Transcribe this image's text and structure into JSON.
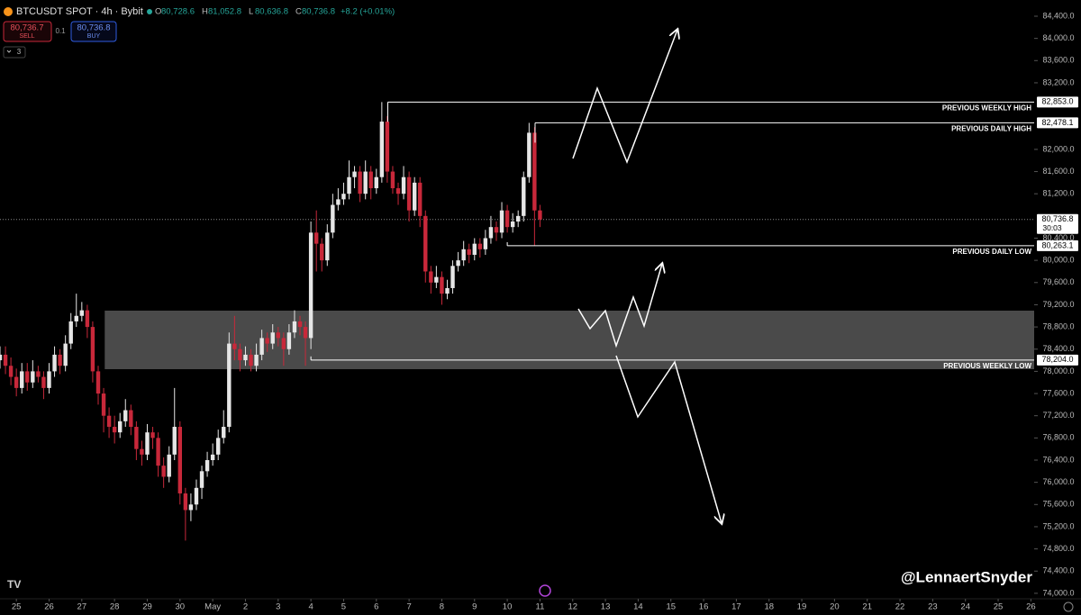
{
  "chart_data": {
    "type": "candlestick",
    "title": "BTCUSDT SPOT · 4h · Bybit",
    "ohlc": [
      {
        "key": "O",
        "value": "80,728.6"
      },
      {
        "key": "H",
        "value": "81,052.8"
      },
      {
        "key": "L",
        "value": "80,636.8"
      },
      {
        "key": "C",
        "value": "80,736.8"
      }
    ],
    "change": "+8.2 (+0.01%)",
    "trade": {
      "sell_price": "80,736.7",
      "sell": "SELL",
      "qty": "0.1",
      "buy_price": "80,736.8",
      "buy": "BUY",
      "indicators": "3"
    },
    "watermark": "@LennaertSnyder",
    "up_color": "#e6e6e6",
    "down_color": "#c8283a",
    "x": [
      -0.5,
      -0.333,
      -0.167,
      0,
      0.167,
      0.333,
      0.5,
      0.667,
      0.833,
      1,
      1.167,
      1.333,
      1.5,
      1.667,
      1.833,
      2,
      2.167,
      2.333,
      2.5,
      2.667,
      2.833,
      3,
      3.167,
      3.333,
      3.5,
      3.667,
      3.833,
      4,
      4.167,
      4.333,
      4.5,
      4.667,
      4.833,
      5,
      5.167,
      5.333,
      5.5,
      5.667,
      5.833,
      6,
      6.167,
      6.333,
      6.5,
      6.667,
      6.833,
      7,
      7.167,
      7.333,
      7.5,
      7.667,
      7.833,
      8,
      8.167,
      8.333,
      8.5,
      8.667,
      8.833,
      9,
      9.167,
      9.333,
      9.5,
      9.667,
      9.833,
      10,
      10.167,
      10.333,
      10.5,
      10.667,
      10.833,
      11,
      11.167,
      11.333,
      11.5,
      11.667,
      11.833,
      12,
      12.167,
      12.333,
      12.5,
      12.667,
      12.833,
      13,
      13.167,
      13.333,
      13.5,
      13.667,
      13.833,
      14,
      14.167,
      14.333,
      14.5,
      14.667,
      14.833,
      15,
      15.167,
      15.333,
      15.5,
      15.667,
      15.833,
      16
    ],
    "open": [
      78200,
      78300,
      78100,
      77900,
      77700,
      78000,
      77800,
      78000,
      77900,
      77700,
      78000,
      78300,
      78100,
      78500,
      78900,
      79000,
      79100,
      78800,
      78000,
      77600,
      77200,
      77000,
      76900,
      77100,
      77300,
      77000,
      76600,
      76500,
      76900,
      76800,
      76300,
      76100,
      76500,
      77000,
      75800,
      75500,
      75600,
      75900,
      76200,
      76400,
      76500,
      76800,
      77000,
      78500,
      78400,
      78200,
      78300,
      78100,
      78300,
      78600,
      78500,
      78700,
      78600,
      78400,
      78700,
      78900,
      78800,
      78600,
      80500,
      80300,
      80000,
      80500,
      81000,
      81100,
      81200,
      81500,
      81600,
      81200,
      81600,
      81300,
      81500,
      82500,
      81600,
      81300,
      81200,
      81500,
      80900,
      81400,
      80800,
      79800,
      79600,
      79700,
      79400,
      79500,
      79900,
      80000,
      80200,
      80100,
      80300,
      80200,
      80400,
      80600,
      80500,
      80900,
      80600,
      80700,
      80800,
      81500,
      82300,
      80900
    ],
    "high": [
      78450,
      78450,
      78250,
      78050,
      78150,
      78150,
      78200,
      78100,
      78000,
      78150,
      78450,
      78400,
      78650,
      79050,
      79400,
      79250,
      79200,
      78900,
      78100,
      77700,
      77350,
      77200,
      77250,
      77500,
      77400,
      77100,
      76750,
      77050,
      77000,
      76900,
      76450,
      76650,
      77700,
      77100,
      75900,
      75800,
      76050,
      76300,
      76550,
      76700,
      76950,
      77300,
      78700,
      79000,
      78500,
      78450,
      78400,
      78500,
      78750,
      78700,
      78850,
      78800,
      78700,
      78850,
      79100,
      79000,
      78900,
      80700,
      80900,
      80400,
      80650,
      81200,
      81300,
      81400,
      81800,
      81700,
      81700,
      81800,
      81700,
      81650,
      82853,
      82600,
      81700,
      81400,
      81700,
      81600,
      81500,
      81500,
      80900,
      79900,
      79900,
      79800,
      79650,
      80000,
      80150,
      80350,
      80300,
      80400,
      80400,
      80550,
      80800,
      80700,
      81050,
      81000,
      80850,
      80900,
      81600,
      82478,
      82400,
      81000
    ],
    "low": [
      78050,
      77950,
      77750,
      77550,
      77600,
      77650,
      77700,
      77800,
      77500,
      77600,
      77900,
      77950,
      78000,
      78400,
      78800,
      78900,
      78600,
      77800,
      77400,
      76900,
      76800,
      76700,
      76800,
      77000,
      76850,
      76400,
      76300,
      76400,
      76600,
      76100,
      75900,
      76000,
      76400,
      75600,
      74950,
      75300,
      75500,
      75700,
      76100,
      76300,
      76400,
      76700,
      76900,
      78200,
      78000,
      78100,
      78000,
      78000,
      78200,
      78350,
      78400,
      78450,
      78100,
      78300,
      78600,
      78650,
      78100,
      78400,
      79800,
      79800,
      79900,
      80400,
      80900,
      81000,
      81100,
      81300,
      81050,
      81100,
      81100,
      81200,
      81400,
      81400,
      81200,
      81000,
      81100,
      80700,
      80800,
      80600,
      79600,
      79400,
      79500,
      79200,
      79300,
      79400,
      79800,
      79900,
      79950,
      80000,
      80050,
      80100,
      80300,
      80350,
      80400,
      80500,
      80500,
      80600,
      80700,
      81400,
      80263.1,
      80600
    ],
    "close": [
      78300,
      78100,
      77900,
      77700,
      78000,
      77800,
      78000,
      77900,
      77700,
      78000,
      78300,
      78100,
      78500,
      78900,
      79000,
      79100,
      78800,
      78000,
      77600,
      77200,
      77000,
      76900,
      77100,
      77300,
      77000,
      76600,
      76500,
      76900,
      76800,
      76300,
      76100,
      76500,
      77000,
      75800,
      75500,
      75600,
      75900,
      76200,
      76400,
      76500,
      76800,
      77000,
      78500,
      78400,
      78200,
      78300,
      78100,
      78300,
      78600,
      78500,
      78700,
      78600,
      78400,
      78700,
      78900,
      78800,
      78600,
      80500,
      80300,
      80000,
      80500,
      81000,
      81100,
      81200,
      81500,
      81600,
      81200,
      81600,
      81300,
      81500,
      82500,
      81600,
      81300,
      81200,
      81500,
      80900,
      81400,
      80800,
      79800,
      79600,
      79700,
      79400,
      79500,
      79900,
      80000,
      80200,
      80100,
      80300,
      80200,
      80400,
      80600,
      80500,
      80900,
      80600,
      80700,
      80800,
      81500,
      82300,
      80900,
      80736.8
    ],
    "xlim": [
      -0.5,
      31.1
    ],
    "ylim": [
      73901,
      84692
    ],
    "xticks": [
      {
        "value": 0,
        "label": "25"
      },
      {
        "value": 1,
        "label": "26"
      },
      {
        "value": 2,
        "label": "27"
      },
      {
        "value": 3,
        "label": "28"
      },
      {
        "value": 4,
        "label": "29"
      },
      {
        "value": 5,
        "label": "30"
      },
      {
        "value": 6,
        "label": "May"
      },
      {
        "value": 7,
        "label": "2"
      },
      {
        "value": 8,
        "label": "3"
      },
      {
        "value": 9,
        "label": "4"
      },
      {
        "value": 10,
        "label": "5"
      },
      {
        "value": 11,
        "label": "6"
      },
      {
        "value": 12,
        "label": "7"
      },
      {
        "value": 13,
        "label": "8"
      },
      {
        "value": 14,
        "label": "9"
      },
      {
        "value": 15,
        "label": "10"
      },
      {
        "value": 16,
        "label": "11"
      },
      {
        "value": 17,
        "label": "12"
      },
      {
        "value": 18,
        "label": "13"
      },
      {
        "value": 19,
        "label": "14"
      },
      {
        "value": 20,
        "label": "15"
      },
      {
        "value": 21,
        "label": "16"
      },
      {
        "value": 22,
        "label": "17"
      },
      {
        "value": 23,
        "label": "18"
      },
      {
        "value": 24,
        "label": "19"
      },
      {
        "value": 25,
        "label": "20"
      },
      {
        "value": 26,
        "label": "21"
      },
      {
        "value": 27,
        "label": "22"
      },
      {
        "value": 28,
        "label": "23"
      },
      {
        "value": 29,
        "label": "24"
      },
      {
        "value": 30,
        "label": "25"
      },
      {
        "value": 31,
        "label": "26"
      }
    ],
    "yticks": [
      {
        "value": 74000,
        "label": "74,000.0"
      },
      {
        "value": 74400,
        "label": "74,400.0"
      },
      {
        "value": 74800,
        "label": "74,800.0"
      },
      {
        "value": 75200,
        "label": "75,200.0"
      },
      {
        "value": 75600,
        "label": "75,600.0"
      },
      {
        "value": 76000,
        "label": "76,000.0"
      },
      {
        "value": 76400,
        "label": "76,400.0"
      },
      {
        "value": 76800,
        "label": "76,800.0"
      },
      {
        "value": 77200,
        "label": "77,200.0"
      },
      {
        "value": 77600,
        "label": "77,600.0"
      },
      {
        "value": 78000,
        "label": "78,000.0"
      },
      {
        "value": 78400,
        "label": "78,400.0"
      },
      {
        "value": 78800,
        "label": "78,800.0"
      },
      {
        "value": 79200,
        "label": "79,200.0"
      },
      {
        "value": 79600,
        "label": "79,600.0"
      },
      {
        "value": 80000,
        "label": "80,000.0"
      },
      {
        "value": 80400,
        "label": "80,400.0"
      },
      {
        "value": 81200,
        "label": "81,200.0"
      },
      {
        "value": 81600,
        "label": "81,600.0"
      },
      {
        "value": 82000,
        "label": "82,000.0"
      },
      {
        "value": 83200,
        "label": "83,200.0"
      },
      {
        "value": 83600,
        "label": "83,600.0"
      },
      {
        "value": 84000,
        "label": "84,000.0"
      },
      {
        "value": 84400,
        "label": "84,400.0"
      }
    ],
    "zone": {
      "low": 78039,
      "high": 79094,
      "from": 2.7
    },
    "levels": [
      {
        "value": 82853,
        "label": "82,853.0",
        "text": "PREVIOUS WEEKLY HIGH",
        "from": 11.35
      },
      {
        "value": 82478.1,
        "label": "82,478.1",
        "text": "PREVIOUS DAILY HIGH",
        "from": 15.85
      },
      {
        "value": 80263.1,
        "label": "80,263.1",
        "text": "PREVIOUS DAILY LOW",
        "from": 15
      },
      {
        "value": 78204,
        "label": "78,204.0",
        "text": "PREVIOUS WEEKLY LOW",
        "from": 9
      }
    ],
    "last_price": {
      "value": 80736.8,
      "label": "80,736.8",
      "countdown": "30:03"
    }
  }
}
